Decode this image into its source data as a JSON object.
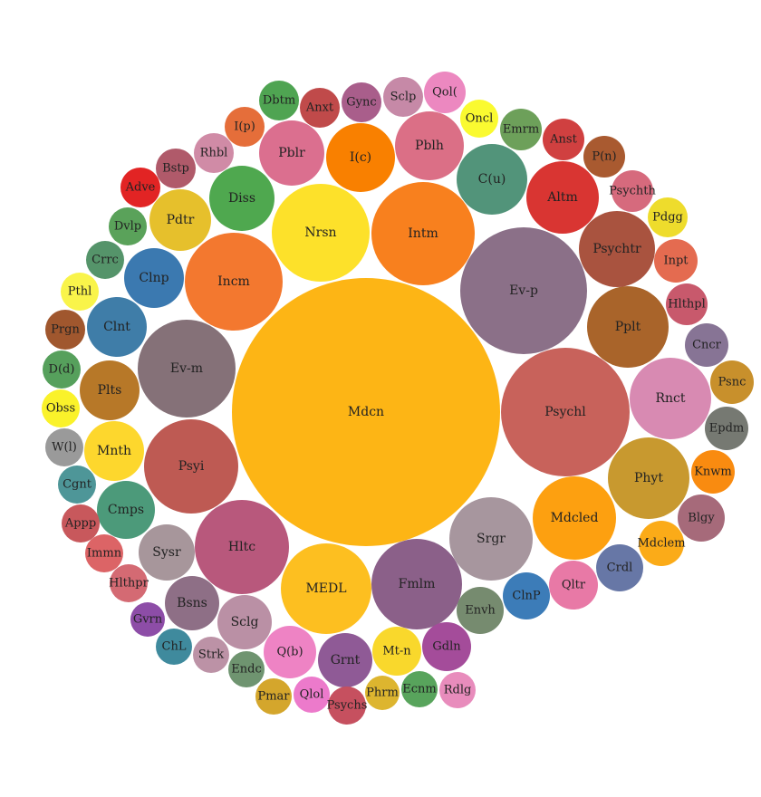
{
  "chart_data": {
    "type": "bubble-pack",
    "title": "",
    "grid": false,
    "legend": "none",
    "bubbles": [
      {
        "label": "Mdcn",
        "r": 148,
        "color": "#FDB515"
      },
      {
        "label": "Ev-p",
        "r": 70,
        "color": "#8B7088"
      },
      {
        "label": "Psychl",
        "r": 71,
        "color": "#C8625B"
      },
      {
        "label": "Hltc",
        "r": 52,
        "color": "#B8587C"
      },
      {
        "label": "Psyi",
        "r": 52,
        "color": "#BE5A53"
      },
      {
        "label": "Ev-m",
        "r": 54,
        "color": "#857178"
      },
      {
        "label": "Incm",
        "r": 54,
        "color": "#F3782F"
      },
      {
        "label": "Nrsn",
        "r": 54,
        "color": "#FDE12A"
      },
      {
        "label": "Intm",
        "r": 57,
        "color": "#F8801E"
      },
      {
        "label": "Fmlm",
        "r": 50,
        "color": "#8B6089"
      },
      {
        "label": "MEDL",
        "r": 50,
        "color": "#FDBF20"
      },
      {
        "label": "Srgr",
        "r": 46,
        "color": "#A7969E"
      },
      {
        "label": "Mdcled",
        "r": 46,
        "color": "#FDA010"
      },
      {
        "label": "Rnct",
        "r": 45,
        "color": "#D88AB2"
      },
      {
        "label": "Phyt",
        "r": 45,
        "color": "#C8992F"
      },
      {
        "label": "Pplt",
        "r": 45,
        "color": "#A9642A"
      },
      {
        "label": "Psychtr",
        "r": 42,
        "color": "#A9533F"
      },
      {
        "label": "Altm",
        "r": 40,
        "color": "#D93532"
      },
      {
        "label": "C(u)",
        "r": 39,
        "color": "#52947A"
      },
      {
        "label": "Pblh",
        "r": 38,
        "color": "#DB6F86"
      },
      {
        "label": "Pblr",
        "r": 36,
        "color": "#DB6F8F"
      },
      {
        "label": "I(c)",
        "r": 38,
        "color": "#F98000"
      },
      {
        "label": "Diss",
        "r": 36,
        "color": "#4FA84F"
      },
      {
        "label": "Pdtr",
        "r": 34,
        "color": "#E6C02C"
      },
      {
        "label": "Clnp",
        "r": 33,
        "color": "#3B79B0"
      },
      {
        "label": "Clnt",
        "r": 33,
        "color": "#3F7DA8"
      },
      {
        "label": "Plts",
        "r": 33,
        "color": "#B77828"
      },
      {
        "label": "Mnth",
        "r": 33,
        "color": "#FDD72D"
      },
      {
        "label": "Cmps",
        "r": 32,
        "color": "#4C9A7A"
      },
      {
        "label": "Sysr",
        "r": 31,
        "color": "#A7969B"
      },
      {
        "label": "Sclg",
        "r": 30,
        "color": "#BA90A5"
      },
      {
        "label": "Bsns",
        "r": 30,
        "color": "#8E6F86"
      },
      {
        "label": "Q(b)",
        "r": 29,
        "color": "#EE83C4"
      },
      {
        "label": "Grnt",
        "r": 30,
        "color": "#8F5A96"
      },
      {
        "label": "Mt-n",
        "r": 27,
        "color": "#F9D82C"
      },
      {
        "label": "Gdln",
        "r": 27,
        "color": "#A44C9A"
      },
      {
        "label": "Envh",
        "r": 26,
        "color": "#768B6F"
      },
      {
        "label": "ClnP",
        "r": 26,
        "color": "#3C7CB8"
      },
      {
        "label": "Qltr",
        "r": 27,
        "color": "#E879A6"
      },
      {
        "label": "Crdl",
        "r": 26,
        "color": "#6777A6"
      },
      {
        "label": "Mdclem",
        "r": 25,
        "color": "#FBAB18"
      },
      {
        "label": "Blgy",
        "r": 26,
        "color": "#A66A7A"
      },
      {
        "label": "Knwm",
        "r": 24,
        "color": "#F98B10"
      },
      {
        "label": "Epdm",
        "r": 24,
        "color": "#767972"
      },
      {
        "label": "Psnc",
        "r": 24,
        "color": "#C8902C"
      },
      {
        "label": "Cncr",
        "r": 24,
        "color": "#877495"
      },
      {
        "label": "Hlthpl",
        "r": 23,
        "color": "#C8596C"
      },
      {
        "label": "Inpt",
        "r": 24,
        "color": "#E46B50"
      },
      {
        "label": "Pdgg",
        "r": 22,
        "color": "#EEDC2C"
      },
      {
        "label": "Psychth",
        "r": 23,
        "color": "#D66A7D"
      },
      {
        "label": "P(n)",
        "r": 23,
        "color": "#A95A30"
      },
      {
        "label": "Anst",
        "r": 23,
        "color": "#D04040"
      },
      {
        "label": "Emrm",
        "r": 23,
        "color": "#6DA05A"
      },
      {
        "label": "Oncl",
        "r": 21,
        "color": "#FAFA30"
      },
      {
        "label": "Qol(",
        "r": 23,
        "color": "#EC88C0"
      },
      {
        "label": "Sclp",
        "r": 22,
        "color": "#C689A7"
      },
      {
        "label": "Gync",
        "r": 22,
        "color": "#A95E8B"
      },
      {
        "label": "Anxt",
        "r": 22,
        "color": "#C04A4A"
      },
      {
        "label": "Dbtm",
        "r": 22,
        "color": "#4FA452"
      },
      {
        "label": "I(p)",
        "r": 22,
        "color": "#E56E3A"
      },
      {
        "label": "Rhbl",
        "r": 22,
        "color": "#D08BA6"
      },
      {
        "label": "Bstp",
        "r": 22,
        "color": "#B05A6A"
      },
      {
        "label": "Adve",
        "r": 22,
        "color": "#E22424"
      },
      {
        "label": "Dvlp",
        "r": 21,
        "color": "#5AA25A"
      },
      {
        "label": "Crrc",
        "r": 21,
        "color": "#55946A"
      },
      {
        "label": "Pthl",
        "r": 21,
        "color": "#F9F44A"
      },
      {
        "label": "Prgn",
        "r": 22,
        "color": "#A0572E"
      },
      {
        "label": "D(d)",
        "r": 21,
        "color": "#56A05C"
      },
      {
        "label": "Obss",
        "r": 21,
        "color": "#FAF22A"
      },
      {
        "label": "W(l)",
        "r": 21,
        "color": "#9A9A9A"
      },
      {
        "label": "Cgnt",
        "r": 21,
        "color": "#4E9698"
      },
      {
        "label": "Appp",
        "r": 21,
        "color": "#C8585C"
      },
      {
        "label": "Immn",
        "r": 21,
        "color": "#DC6466"
      },
      {
        "label": "Hlthpr",
        "r": 21,
        "color": "#D46A73"
      },
      {
        "label": "Gvrn",
        "r": 19,
        "color": "#8D4DA7"
      },
      {
        "label": "ChL",
        "r": 20,
        "color": "#3F8A9D"
      },
      {
        "label": "Strk",
        "r": 20,
        "color": "#BC92A6"
      },
      {
        "label": "Endc",
        "r": 20,
        "color": "#6F9470"
      },
      {
        "label": "Pmar",
        "r": 20,
        "color": "#D4A62C"
      },
      {
        "label": "Qlol",
        "r": 20,
        "color": "#EC7ACB"
      },
      {
        "label": "Psychs",
        "r": 21,
        "color": "#C6505F"
      },
      {
        "label": "Phrm",
        "r": 19,
        "color": "#DDB52F"
      },
      {
        "label": "Ecnm",
        "r": 20,
        "color": "#58A45C"
      },
      {
        "label": "Rdlg",
        "r": 20,
        "color": "#E88CBC"
      }
    ]
  }
}
